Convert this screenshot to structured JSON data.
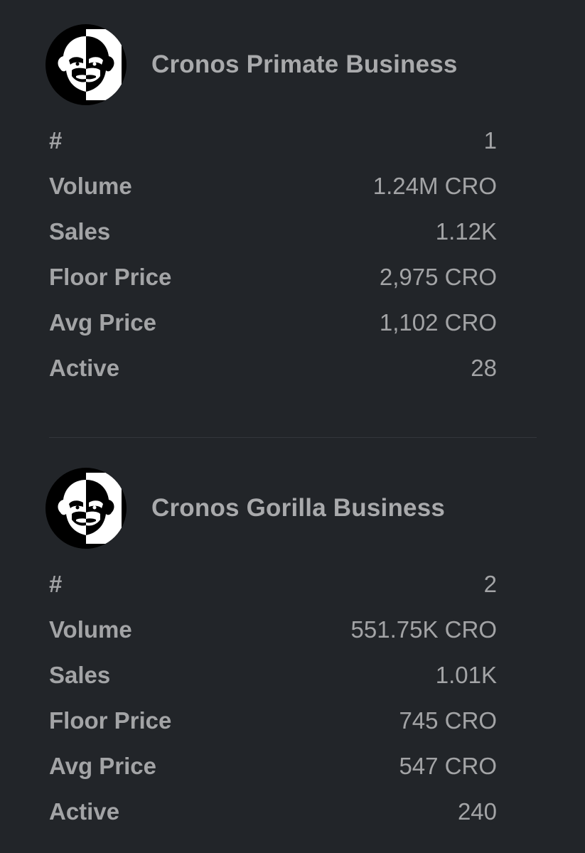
{
  "collections": [
    {
      "name": "Cronos Primate Business",
      "logo_icon": "gorilla-logo-icon",
      "stats": [
        {
          "label": "#",
          "value": "1"
        },
        {
          "label": "Volume",
          "value": "1.24M CRO"
        },
        {
          "label": "Sales",
          "value": "1.12K"
        },
        {
          "label": "Floor Price",
          "value": "2,975 CRO"
        },
        {
          "label": "Avg Price",
          "value": "1,102 CRO"
        },
        {
          "label": "Active",
          "value": "28"
        }
      ]
    },
    {
      "name": "Cronos Gorilla Business",
      "logo_icon": "gorilla-logo-icon",
      "stats": [
        {
          "label": "#",
          "value": "2"
        },
        {
          "label": "Volume",
          "value": "551.75K CRO"
        },
        {
          "label": "Sales",
          "value": "1.01K"
        },
        {
          "label": "Floor Price",
          "value": "745 CRO"
        },
        {
          "label": "Avg Price",
          "value": "547 CRO"
        },
        {
          "label": "Active",
          "value": "240"
        }
      ]
    }
  ],
  "colors": {
    "background": "#222529",
    "text": "#a7a8aa",
    "divider": "#33363b",
    "logo_bg": "#000000",
    "logo_fg": "#ffffff"
  }
}
